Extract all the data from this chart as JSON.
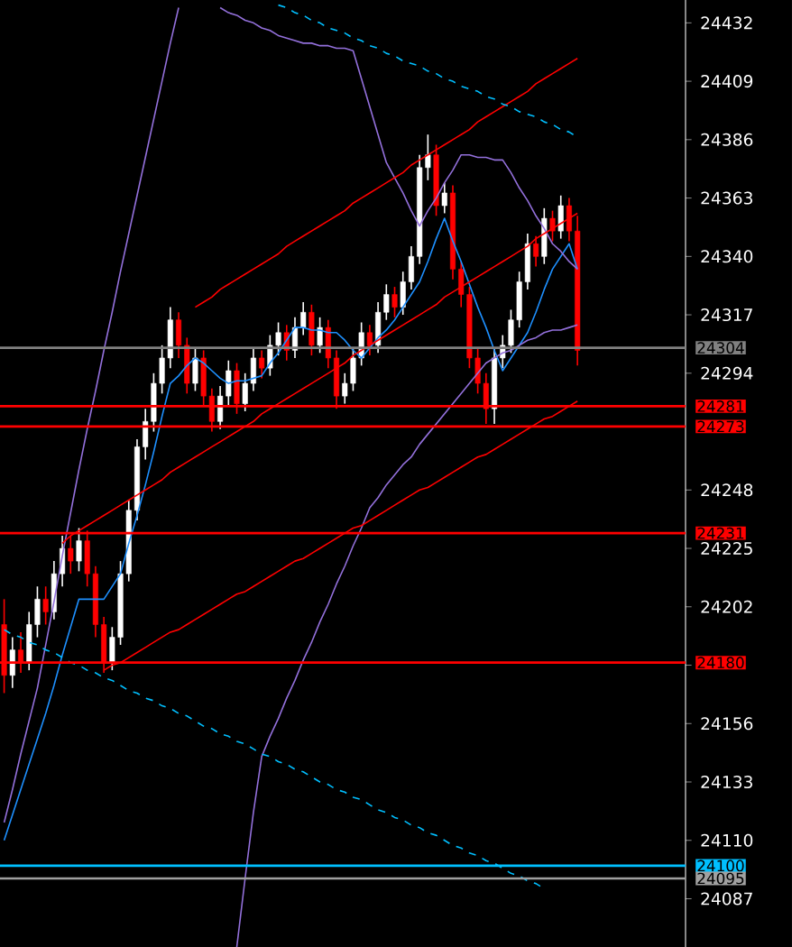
{
  "chart_data": {
    "type": "candlestick",
    "categories": [
      null,
      null,
      null,
      null,
      null,
      null,
      null,
      null,
      null,
      null,
      null,
      null,
      null,
      null,
      null,
      null,
      null,
      null,
      null,
      null,
      null,
      null,
      null,
      null,
      null,
      null,
      null,
      null,
      null,
      null,
      null,
      null,
      null,
      null,
      null,
      null,
      null,
      null,
      null,
      null,
      null,
      null,
      null,
      null,
      null,
      null,
      null,
      null,
      null,
      null,
      null,
      null,
      null,
      null,
      null,
      null,
      null,
      null,
      null,
      null,
      null,
      null,
      null,
      null,
      null,
      null,
      null,
      null,
      null,
      null
    ],
    "ohlc": [
      [
        24195,
        24205,
        24168,
        24175
      ],
      [
        24175,
        24190,
        24170,
        24185
      ],
      [
        24185,
        24192,
        24176,
        24180
      ],
      [
        24180,
        24200,
        24177,
        24195
      ],
      [
        24195,
        24210,
        24190,
        24205
      ],
      [
        24205,
        24210,
        24195,
        24200
      ],
      [
        24200,
        24220,
        24197,
        24215
      ],
      [
        24215,
        24230,
        24210,
        24225
      ],
      [
        24225,
        24230,
        24215,
        24220
      ],
      [
        24220,
        24233,
        24216,
        24228
      ],
      [
        24228,
        24232,
        24210,
        24215
      ],
      [
        24215,
        24218,
        24190,
        24195
      ],
      [
        24195,
        24198,
        24176,
        24180
      ],
      [
        24180,
        24194,
        24177,
        24190
      ],
      [
        24190,
        24220,
        24187,
        24215
      ],
      [
        24215,
        24244,
        24212,
        24240
      ],
      [
        24240,
        24268,
        24236,
        24265
      ],
      [
        24265,
        24280,
        24260,
        24275
      ],
      [
        24275,
        24294,
        24271,
        24290
      ],
      [
        24290,
        24305,
        24286,
        24300
      ],
      [
        24300,
        24320,
        24296,
        24315
      ],
      [
        24315,
        24318,
        24300,
        24305
      ],
      [
        24305,
        24308,
        24286,
        24290
      ],
      [
        24290,
        24304,
        24287,
        24300
      ],
      [
        24300,
        24303,
        24281,
        24285
      ],
      [
        24285,
        24288,
        24271,
        24275
      ],
      [
        24275,
        24289,
        24272,
        24285
      ],
      [
        24285,
        24299,
        24281,
        24295
      ],
      [
        24295,
        24298,
        24278,
        24282
      ],
      [
        24282,
        24294,
        24279,
        24290
      ],
      [
        24290,
        24304,
        24287,
        24300
      ],
      [
        24300,
        24303,
        24292,
        24296
      ],
      [
        24296,
        24309,
        24293,
        24305
      ],
      [
        24305,
        24314,
        24301,
        24310
      ],
      [
        24310,
        24313,
        24299,
        24303
      ],
      [
        24303,
        24316,
        24300,
        24312
      ],
      [
        24312,
        24322,
        24309,
        24318
      ],
      [
        24318,
        24321,
        24301,
        24305
      ],
      [
        24305,
        24316,
        24302,
        24312
      ],
      [
        24312,
        24315,
        24296,
        24300
      ],
      [
        24300,
        24303,
        24280,
        24285
      ],
      [
        24285,
        24294,
        24282,
        24290
      ],
      [
        24290,
        24304,
        24287,
        24300
      ],
      [
        24300,
        24314,
        24297,
        24310
      ],
      [
        24310,
        24313,
        24301,
        24305
      ],
      [
        24305,
        24322,
        24302,
        24318
      ],
      [
        24318,
        24329,
        24315,
        24325
      ],
      [
        24325,
        24328,
        24316,
        24320
      ],
      [
        24320,
        24334,
        24317,
        24330
      ],
      [
        24330,
        24344,
        24327,
        24340
      ],
      [
        24340,
        24380,
        24337,
        24375
      ],
      [
        24375,
        24388,
        24370,
        24380
      ],
      [
        24380,
        24384,
        24356,
        24360
      ],
      [
        24360,
        24369,
        24357,
        24365
      ],
      [
        24365,
        24368,
        24331,
        24335
      ],
      [
        24335,
        24338,
        24320,
        24325
      ],
      [
        24325,
        24328,
        24296,
        24300
      ],
      [
        24300,
        24304,
        24286,
        24290
      ],
      [
        24290,
        24294,
        24274,
        24280
      ],
      [
        24280,
        24304,
        24274,
        24300
      ],
      [
        24300,
        24309,
        24296,
        24305
      ],
      [
        24305,
        24319,
        24302,
        24315
      ],
      [
        24315,
        24334,
        24312,
        24330
      ],
      [
        24330,
        24349,
        24327,
        24345
      ],
      [
        24345,
        24348,
        24336,
        24340
      ],
      [
        24340,
        24359,
        24337,
        24355
      ],
      [
        24355,
        24358,
        24346,
        24350
      ],
      [
        24350,
        24364,
        24347,
        24360
      ],
      [
        24360,
        24363,
        24346,
        24350
      ],
      [
        24350,
        24356,
        24297,
        24303
      ]
    ],
    "series": [
      {
        "type": "line",
        "color": "#1e90ff",
        "values": [
          24110,
          24120,
          24130,
          24140,
          24150,
          24160,
          24171,
          24183,
          24194,
          24205,
          24205,
          24205,
          24205,
          24210,
          24215,
          24227,
          24238,
          24250,
          24263,
          24277,
          24290,
          24293,
          24297,
          24300,
          24298,
          24295,
          24292,
          24290,
          24291,
          24291,
          24292,
          24293,
          24298,
          24302,
          24307,
          24312,
          24312,
          24311,
          24311,
          24310,
          24310,
          24307,
          24303,
          24300,
          24304,
          24308,
          24311,
          24315,
          24320,
          24325,
          24330,
          24338,
          24347,
          24355,
          24346,
          24338,
          24329,
          24320,
          24312,
          24303,
          24295,
          24300,
          24305,
          24310,
          24318,
          24327,
          24335,
          24340,
          24345,
          24335
        ]
      },
      {
        "type": "line",
        "color": "#9370db",
        "values": [
          24117,
          24130,
          24144,
          24157,
          24170,
          24187,
          24204,
          24222,
          24239,
          24256,
          24272,
          24287,
          24303,
          24318,
          24334,
          24349,
          24364,
          24379,
          24394,
          24409,
          24424,
          24438,
          null,
          null,
          null,
          null,
          24438,
          24436,
          24435,
          24433,
          24432,
          24430,
          24429,
          24427,
          24426,
          24425,
          24424,
          24424,
          24423,
          24423,
          24422,
          24422,
          24421,
          24410,
          24399,
          24388,
          24377,
          24371,
          24365,
          24358,
          24352,
          24358,
          24363,
          24369,
          24374,
          24380,
          24380,
          24379,
          24379,
          24378,
          24378,
          24373,
          24367,
          24362,
          24356,
          24351,
          24345,
          24342,
          24338,
          24335
        ]
      },
      {
        "type": "line",
        "color": "#9370db",
        "values": [
          null,
          null,
          null,
          null,
          null,
          null,
          null,
          null,
          null,
          null,
          null,
          null,
          null,
          null,
          null,
          null,
          null,
          null,
          null,
          null,
          null,
          null,
          null,
          null,
          null,
          null,
          null,
          null,
          24068,
          24095,
          24121,
          24143,
          24151,
          24158,
          24166,
          24173,
          24181,
          24188,
          24196,
          24203,
          24211,
          24218,
          24226,
          24233,
          24241,
          24245,
          24250,
          24254,
          24258,
          24261,
          24266,
          24270,
          24274,
          24278,
          24282,
          24286,
          24290,
          24294,
          24298,
          24300,
          24302,
          24303,
          24305,
          24307,
          24308,
          24310,
          24311,
          24311,
          24312,
          24313
        ]
      },
      {
        "type": "line",
        "color": "#ff0000",
        "values": [
          null,
          null,
          null,
          null,
          null,
          null,
          null,
          null,
          null,
          null,
          null,
          null,
          24177,
          24179,
          24180,
          24182,
          24184,
          24186,
          24188,
          24190,
          24192,
          24193,
          24195,
          24197,
          24199,
          24201,
          24203,
          24205,
          24207,
          24208,
          24210,
          24212,
          24214,
          24216,
          24218,
          24220,
          24221,
          24223,
          24225,
          24227,
          24229,
          24231,
          24233,
          24234,
          24236,
          24238,
          24240,
          24242,
          24244,
          24246,
          24248,
          24249,
          24251,
          24253,
          24255,
          24257,
          24259,
          24261,
          24262,
          24264,
          24266,
          24268,
          24270,
          24272,
          24274,
          24276,
          24277,
          24279,
          24281,
          24283
        ]
      },
      {
        "type": "line",
        "color": "#ff0000",
        "values": [
          null,
          null,
          null,
          null,
          null,
          null,
          null,
          24227,
          24230,
          24232,
          24234,
          24236,
          24238,
          24240,
          24242,
          24244,
          24246,
          24248,
          24250,
          24252,
          24255,
          24257,
          24259,
          24261,
          24263,
          24265,
          24267,
          24269,
          24271,
          24273,
          24275,
          24278,
          24280,
          24282,
          24284,
          24286,
          24288,
          24290,
          24292,
          24294,
          24296,
          24298,
          24301,
          24303,
          24305,
          24307,
          24309,
          24311,
          24313,
          24315,
          24317,
          24319,
          24321,
          24324,
          24326,
          24328,
          24330,
          24332,
          24334,
          24336,
          24338,
          24340,
          24342,
          24344,
          24347,
          24349,
          24351,
          24353,
          24355,
          24357
        ]
      },
      {
        "type": "line",
        "color": "#ff0000",
        "values": [
          null,
          null,
          null,
          null,
          null,
          null,
          null,
          null,
          null,
          null,
          null,
          null,
          null,
          null,
          null,
          null,
          null,
          null,
          null,
          null,
          null,
          null,
          null,
          24320,
          24322,
          24324,
          24327,
          24329,
          24331,
          24333,
          24335,
          24337,
          24339,
          24341,
          24344,
          24346,
          24348,
          24350,
          24352,
          24354,
          24356,
          24358,
          24361,
          24363,
          24365,
          24367,
          24369,
          24371,
          24373,
          24376,
          24378,
          24380,
          24382,
          24384,
          24386,
          24388,
          24390,
          24393,
          24395,
          24397,
          24399,
          24401,
          24403,
          24405,
          24408,
          24410,
          24412,
          24414,
          24416,
          24418
        ]
      },
      {
        "type": "line",
        "color": "#00bfff",
        "line_style": "dashed",
        "values": [
          null,
          null,
          null,
          null,
          null,
          null,
          null,
          null,
          null,
          null,
          null,
          null,
          null,
          null,
          null,
          null,
          null,
          null,
          null,
          null,
          null,
          null,
          null,
          null,
          null,
          null,
          null,
          null,
          null,
          null,
          null,
          null,
          null,
          24439,
          24438,
          24436,
          24435,
          24433,
          24432,
          24430,
          24429,
          24428,
          24426,
          24425,
          24423,
          24422,
          24420,
          24419,
          24417,
          24416,
          24415,
          24413,
          24412,
          24410,
          24409,
          24407,
          24406,
          24405,
          24403,
          24402,
          24400,
          24399,
          24397,
          24396,
          24395,
          24393,
          24392,
          24390,
          24389,
          24387
        ]
      },
      {
        "type": "line",
        "color": "#00bfff",
        "line_style": "dashed",
        "values": [
          24193,
          24191,
          24190,
          24188,
          24187,
          24185,
          24184,
          24182,
          24180,
          24179,
          24177,
          24176,
          24174,
          24173,
          24171,
          24169,
          24168,
          24166,
          24165,
          24163,
          24162,
          24160,
          24159,
          24157,
          24155,
          24154,
          24152,
          24151,
          24149,
          24148,
          24146,
          24144,
          24143,
          24141,
          24140,
          24138,
          24137,
          24135,
          24133,
          24132,
          24130,
          24129,
          24127,
          24126,
          24124,
          24122,
          24121,
          24119,
          24118,
          24116,
          24115,
          24113,
          24112,
          24110,
          24108,
          24107,
          24105,
          24104,
          24102,
          24101,
          24099,
          24097,
          24096,
          24094,
          24093,
          24091,
          null,
          null,
          null,
          null
        ]
      }
    ],
    "ylim": [
      24068,
      24441
    ],
    "yticks": [
      24087,
      24110,
      24133,
      24156,
      {
        "value": 24179,
        "label": null
      },
      24202,
      24225,
      24248,
      24294,
      24317,
      24340,
      24363,
      24386,
      24409,
      24432
    ],
    "tick_labels": "y",
    "ref_lines": [
      {
        "axis": "y",
        "value": 24304,
        "label": "24304",
        "color": "#808080"
      },
      {
        "axis": "y",
        "value": 24281,
        "label": "24281",
        "color": "#ff0000"
      },
      {
        "axis": "y",
        "value": 24273,
        "label": "24273",
        "color": "#ff0000"
      },
      {
        "axis": "y",
        "value": 24231,
        "label": "24231",
        "color": "#ff0000"
      },
      {
        "axis": "y",
        "value": 24180,
        "label": "24180",
        "color": "#ff0000"
      },
      {
        "axis": "y",
        "value": 24100,
        "label": "24100",
        "color": "#00bfff"
      },
      {
        "axis": "y",
        "value": 24095,
        "label": "24095",
        "color": "#a0a0a0"
      }
    ]
  }
}
